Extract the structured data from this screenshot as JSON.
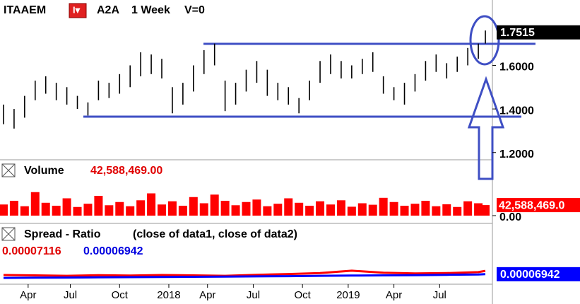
{
  "header": {
    "symbol": "ITAAEM",
    "data_name": "A2A",
    "period": "1 Week",
    "volume_flag": "V=0"
  },
  "chart_data": [
    {
      "type": "hilo",
      "color": "#000000",
      "x": [
        0,
        3,
        6,
        9,
        12,
        15,
        18,
        21,
        24,
        27,
        30,
        33,
        36,
        39,
        42,
        45,
        48,
        51,
        54,
        57,
        60,
        63,
        66,
        69,
        72,
        75,
        78,
        81,
        84,
        87,
        90,
        93,
        96,
        99,
        102,
        105,
        108,
        111,
        114,
        117,
        120,
        123,
        126,
        129,
        132,
        135,
        137
      ],
      "high": [
        1.42,
        1.4,
        1.46,
        1.53,
        1.55,
        1.52,
        1.5,
        1.46,
        1.43,
        1.53,
        1.52,
        1.56,
        1.6,
        1.66,
        1.65,
        1.63,
        1.5,
        1.52,
        1.6,
        1.67,
        1.7,
        1.53,
        1.52,
        1.58,
        1.62,
        1.58,
        1.52,
        1.5,
        1.45,
        1.53,
        1.62,
        1.65,
        1.62,
        1.6,
        1.63,
        1.66,
        1.55,
        1.5,
        1.52,
        1.56,
        1.62,
        1.65,
        1.61,
        1.64,
        1.68,
        1.7,
        1.76
      ],
      "low": [
        1.33,
        1.31,
        1.36,
        1.44,
        1.47,
        1.44,
        1.42,
        1.4,
        1.37,
        1.44,
        1.45,
        1.47,
        1.5,
        1.55,
        1.56,
        1.54,
        1.38,
        1.42,
        1.48,
        1.56,
        1.6,
        1.39,
        1.42,
        1.48,
        1.52,
        1.46,
        1.44,
        1.42,
        1.38,
        1.44,
        1.52,
        1.56,
        1.54,
        1.54,
        1.56,
        1.57,
        1.47,
        1.44,
        1.42,
        1.48,
        1.53,
        1.57,
        1.54,
        1.57,
        1.6,
        1.63,
        1.7
      ],
      "last": 1.7515,
      "xlim": [
        -1,
        139
      ],
      "ylim": [
        1.17,
        1.9
      ],
      "yticks": [
        {
          "value": 1.6,
          "label": "1.6000"
        },
        {
          "value": 1.4,
          "label": "1.4000"
        },
        {
          "value": 1.2,
          "label": "1.2000"
        }
      ]
    },
    {
      "type": "bar",
      "title": "Volume",
      "color": "#ff0000",
      "x": [
        0,
        3,
        6,
        9,
        12,
        15,
        18,
        21,
        24,
        27,
        30,
        33,
        36,
        39,
        42,
        45,
        48,
        51,
        54,
        57,
        60,
        63,
        66,
        69,
        72,
        75,
        78,
        81,
        84,
        87,
        90,
        93,
        96,
        99,
        102,
        105,
        108,
        111,
        114,
        117,
        120,
        123,
        126,
        129,
        132,
        135,
        137
      ],
      "values": [
        45000000,
        60000000,
        38000000,
        95000000,
        52000000,
        40000000,
        70000000,
        35000000,
        48000000,
        80000000,
        42000000,
        55000000,
        38000000,
        62000000,
        90000000,
        45000000,
        58000000,
        40000000,
        75000000,
        50000000,
        85000000,
        60000000,
        42000000,
        55000000,
        65000000,
        38000000,
        48000000,
        70000000,
        52000000,
        40000000,
        58000000,
        45000000,
        62000000,
        36000000,
        50000000,
        44000000,
        72000000,
        55000000,
        40000000,
        48000000,
        60000000,
        38000000,
        46000000,
        35000000,
        58000000,
        50000000,
        42588469
      ],
      "readout": {
        "value": 42588469,
        "label": "42,588,469.00"
      },
      "axis_readout": {
        "value": 42588469,
        "label": "42,588,469.0"
      },
      "xlim": [
        -1,
        139
      ],
      "ylim": [
        0,
        220000000
      ],
      "yticks": [
        {
          "value": 0,
          "label": "0.00"
        }
      ]
    },
    {
      "type": "line",
      "title": "Spread - Ratio",
      "subtitle": "(close of data1,  close of data2)",
      "x": [
        0,
        9,
        18,
        27,
        36,
        45,
        54,
        63,
        72,
        81,
        90,
        99,
        108,
        117,
        126,
        135,
        137
      ],
      "series": [
        {
          "name": "close of data1",
          "color": "#ff0000",
          "values": [
            6.9e-05,
            6.88e-05,
            6.86e-05,
            6.89e-05,
            6.87e-05,
            6.9e-05,
            6.88e-05,
            6.86e-05,
            6.91e-05,
            6.95e-05,
            7e-05,
            7.12e-05,
            7.02e-05,
            6.98e-05,
            7e-05,
            7.05e-05,
            7.116e-05
          ]
        },
        {
          "name": "close of data2",
          "color": "#0000ff",
          "values": [
            6.75e-05,
            6.76e-05,
            6.77e-05,
            6.78e-05,
            6.79e-05,
            6.8e-05,
            6.81e-05,
            6.82e-05,
            6.83e-05,
            6.84e-05,
            6.86e-05,
            6.87e-05,
            6.88e-05,
            6.89e-05,
            6.91e-05,
            6.93e-05,
            6.942e-05
          ]
        }
      ],
      "xlim": [
        -1,
        139
      ],
      "ylim": [
        6.5e-05,
        8.5e-05
      ],
      "xticks": [
        {
          "value": 7,
          "label": "Apr"
        },
        {
          "value": 19,
          "label": "Jul"
        },
        {
          "value": 33,
          "label": "Oct"
        },
        {
          "value": 47,
          "label": "2018"
        },
        {
          "value": 58,
          "label": "Apr"
        },
        {
          "value": 71,
          "label": "Jul"
        },
        {
          "value": 85,
          "label": "Oct"
        },
        {
          "value": 98,
          "label": "2019"
        },
        {
          "value": 111,
          "label": "Apr"
        },
        {
          "value": 124,
          "label": "Jul"
        }
      ]
    }
  ]
}
